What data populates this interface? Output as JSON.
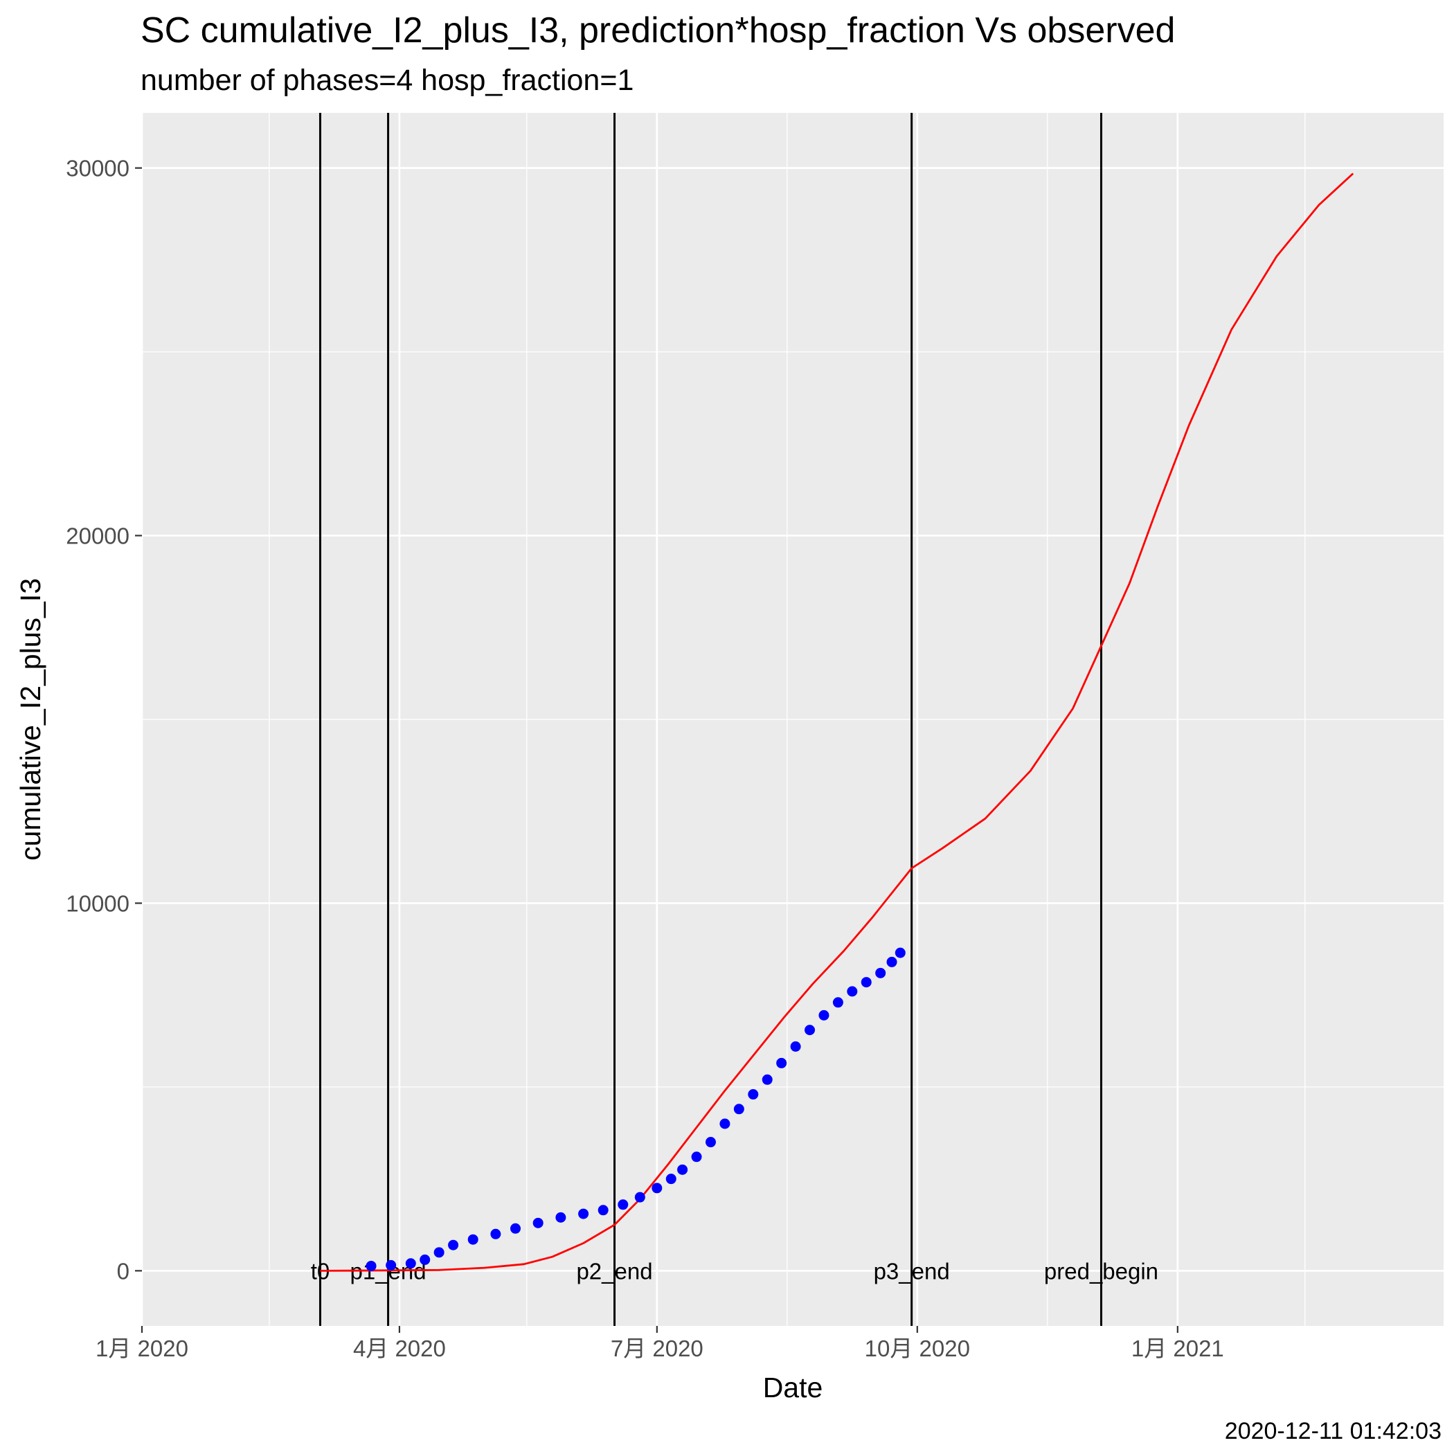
{
  "chart_data": {
    "type": "line",
    "title": "SC cumulative_I2_plus_I3,  prediction*hosp_fraction Vs observed",
    "subtitle": "number of phases=4   hosp_fraction=1",
    "xlabel": "Date",
    "ylabel": "cumulative_I2_plus_I3",
    "timestamp": "2020-12-11 01:42:03",
    "xlim": [
      "2020-01-01",
      "2021-04-05"
    ],
    "ylim": [
      -1500,
      31500
    ],
    "x_ticks": [
      {
        "date": "2020-01-01",
        "label": "1月 2020"
      },
      {
        "date": "2020-04-01",
        "label": "4月 2020"
      },
      {
        "date": "2020-07-01",
        "label": "7月 2020"
      },
      {
        "date": "2020-10-01",
        "label": "10月 2020"
      },
      {
        "date": "2021-01-01",
        "label": "1月 2021"
      }
    ],
    "x_minor_ticks": [
      "2020-02-15",
      "2020-05-16",
      "2020-08-16",
      "2020-11-16",
      "2021-02-15"
    ],
    "y_ticks": [
      {
        "value": 0,
        "label": "0"
      },
      {
        "value": 10000,
        "label": "10000"
      },
      {
        "value": 20000,
        "label": "20000"
      },
      {
        "value": 30000,
        "label": "30000"
      }
    ],
    "y_minor_ticks": [
      5000,
      15000,
      25000
    ],
    "grid": true,
    "phase_lines": [
      {
        "date": "2020-03-04",
        "label": "t0"
      },
      {
        "date": "2020-03-28",
        "label": "p1_end"
      },
      {
        "date": "2020-06-16",
        "label": "p2_end"
      },
      {
        "date": "2020-09-29",
        "label": "p3_end"
      },
      {
        "date": "2020-12-05",
        "label": "pred_begin"
      }
    ],
    "series": [
      {
        "kind": "line",
        "color": "#FF0000",
        "points": [
          [
            "2020-03-04",
            0
          ],
          [
            "2020-03-15",
            3
          ],
          [
            "2020-03-28",
            10
          ],
          [
            "2020-04-15",
            20
          ],
          [
            "2020-05-01",
            80
          ],
          [
            "2020-05-15",
            180
          ],
          [
            "2020-05-25",
            380
          ],
          [
            "2020-06-05",
            750
          ],
          [
            "2020-06-16",
            1250
          ],
          [
            "2020-06-25",
            1950
          ],
          [
            "2020-07-05",
            2900
          ],
          [
            "2020-07-15",
            3900
          ],
          [
            "2020-07-25",
            4900
          ],
          [
            "2020-08-05",
            5950
          ],
          [
            "2020-08-15",
            6900
          ],
          [
            "2020-08-25",
            7800
          ],
          [
            "2020-09-05",
            8700
          ],
          [
            "2020-09-15",
            9600
          ],
          [
            "2020-09-29",
            10950
          ],
          [
            "2020-10-10",
            11500
          ],
          [
            "2020-10-25",
            12300
          ],
          [
            "2020-11-10",
            13600
          ],
          [
            "2020-11-25",
            15300
          ],
          [
            "2020-12-05",
            17000
          ],
          [
            "2020-12-15",
            18700
          ],
          [
            "2020-12-25",
            20800
          ],
          [
            "2021-01-05",
            23000
          ],
          [
            "2021-01-20",
            25600
          ],
          [
            "2021-02-05",
            27600
          ],
          [
            "2021-02-20",
            29000
          ],
          [
            "2021-03-04",
            29850
          ]
        ]
      },
      {
        "kind": "scatter",
        "color": "#0000FF",
        "points": [
          [
            "2020-03-22",
            130
          ],
          [
            "2020-03-29",
            150
          ],
          [
            "2020-04-05",
            200
          ],
          [
            "2020-04-10",
            300
          ],
          [
            "2020-04-15",
            500
          ],
          [
            "2020-04-20",
            700
          ],
          [
            "2020-04-27",
            850
          ],
          [
            "2020-05-05",
            1000
          ],
          [
            "2020-05-12",
            1150
          ],
          [
            "2020-05-20",
            1300
          ],
          [
            "2020-05-28",
            1450
          ],
          [
            "2020-06-05",
            1550
          ],
          [
            "2020-06-12",
            1650
          ],
          [
            "2020-06-19",
            1800
          ],
          [
            "2020-06-25",
            2000
          ],
          [
            "2020-07-01",
            2250
          ],
          [
            "2020-07-06",
            2500
          ],
          [
            "2020-07-10",
            2750
          ],
          [
            "2020-07-15",
            3100
          ],
          [
            "2020-07-20",
            3500
          ],
          [
            "2020-07-25",
            4000
          ],
          [
            "2020-07-30",
            4400
          ],
          [
            "2020-08-04",
            4800
          ],
          [
            "2020-08-09",
            5200
          ],
          [
            "2020-08-14",
            5650
          ],
          [
            "2020-08-19",
            6100
          ],
          [
            "2020-08-24",
            6550
          ],
          [
            "2020-08-29",
            6950
          ],
          [
            "2020-09-03",
            7300
          ],
          [
            "2020-09-08",
            7600
          ],
          [
            "2020-09-13",
            7850
          ],
          [
            "2020-09-18",
            8100
          ],
          [
            "2020-09-22",
            8400
          ],
          [
            "2020-09-25",
            8650
          ]
        ]
      }
    ]
  }
}
